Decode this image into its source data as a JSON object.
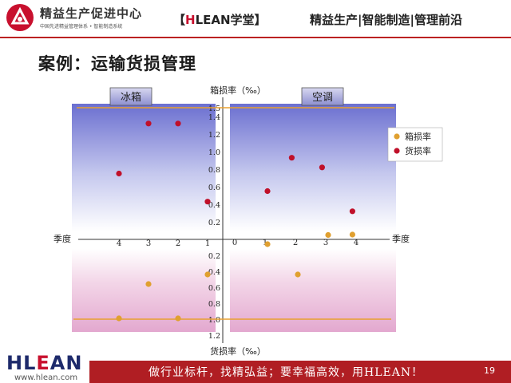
{
  "header": {
    "brand_title": "精益生产促进中心",
    "brand_subtitle": "中国先进精益管理体系 • 智能制造系统",
    "study_bracket_open": "【",
    "study_h": "H",
    "study_rest": "LEAN学堂",
    "study_bracket_close": "】",
    "slogan": "精益生产|智能制造|管理前沿"
  },
  "page_title": "案例：运输货损管理",
  "footer": {
    "logo_text_1": "HL",
    "logo_text_e": "E",
    "logo_text_2": "AN",
    "url": "www.hlean.com",
    "slogan": "做行业标杆，找精弘益；要幸福高效，用HLEAN！",
    "page_number": "19"
  },
  "colors": {
    "brand_red": "#b01e23",
    "box_damage": "#e0a030",
    "goods_damage": "#c0102a",
    "threshold_line": "#e8a030"
  },
  "chart_data": {
    "type": "scatter",
    "panels": [
      "冰箱",
      "空调"
    ],
    "y_axis_top_label": "箱损率（‰）",
    "y_axis_bottom_label": "货损率（‰）",
    "x_axis_label_left": "季度",
    "x_axis_label_right": "季度",
    "y_ticks_top": [
      "1.5",
      "1.4",
      "1.2",
      "1.0",
      "0.8",
      "0.6",
      "0.4",
      "0.2"
    ],
    "y_ticks_top_values": [
      1.5,
      1.4,
      1.2,
      1.0,
      0.8,
      0.6,
      0.4,
      0.2
    ],
    "y_ticks_bottom": [
      "0.2",
      "0.4",
      "0.6",
      "0.8",
      "1.0",
      "1.2"
    ],
    "y_ticks_bottom_values": [
      0.2,
      0.4,
      0.6,
      0.8,
      1.0,
      1.2
    ],
    "x_ticks_left": [
      "4",
      "3",
      "2",
      "1"
    ],
    "x_ticks_left_values": [
      4,
      3,
      2,
      1
    ],
    "x_ticks_right": [
      "0",
      "1",
      "2",
      "3",
      "4"
    ],
    "x_ticks_right_values": [
      0,
      1,
      2,
      3,
      4
    ],
    "thresholds": {
      "top": 1.5,
      "bottom": 1.0
    },
    "legend": [
      "箱损率",
      "货损率"
    ],
    "series": [
      {
        "name": "货损率",
        "panel": "冰箱",
        "half": "top",
        "points": [
          [
            4,
            0.75
          ],
          [
            3,
            1.32
          ],
          [
            2,
            1.32
          ],
          [
            1,
            0.43
          ]
        ]
      },
      {
        "name": "箱损率",
        "panel": "冰箱",
        "half": "bottom",
        "points": [
          [
            4,
            1.05
          ],
          [
            3,
            0.62
          ],
          [
            2,
            1.05
          ],
          [
            1,
            0.5
          ]
        ]
      },
      {
        "name": "货损率",
        "panel": "空调",
        "half": "top",
        "points": [
          [
            1,
            0.55
          ],
          [
            1.8,
            0.93
          ],
          [
            2.8,
            0.82
          ],
          [
            3.8,
            0.32
          ]
        ]
      },
      {
        "name": "箱损率",
        "panel": "空调",
        "half": "top",
        "points": [
          [
            3,
            0.05
          ]
        ]
      },
      {
        "name": "箱损率",
        "panel": "空调",
        "half": "bottom",
        "points": [
          [
            1,
            0.12
          ],
          [
            2,
            0.5
          ],
          [
            3.8,
            0.0
          ]
        ]
      }
    ]
  }
}
